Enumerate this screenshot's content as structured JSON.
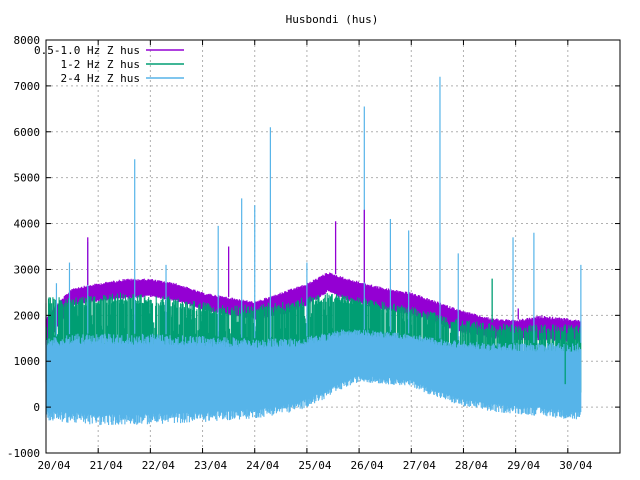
{
  "chart_data": {
    "type": "line",
    "title": "Husbondi (hus)",
    "xlabel": "",
    "ylabel": "",
    "ylim": [
      -1000,
      8000
    ],
    "yticks": [
      -1000,
      0,
      1000,
      2000,
      3000,
      4000,
      5000,
      6000,
      7000,
      8000
    ],
    "x_domain": [
      "2020-04-20",
      "2020-05-01"
    ],
    "x_tick_labels": [
      "20/04",
      "21/04",
      "22/04",
      "23/04",
      "24/04",
      "25/04",
      "26/04",
      "27/04",
      "28/04",
      "29/04",
      "30/04"
    ],
    "grid": true,
    "legend_position": "top-left",
    "series": [
      {
        "name": "0.5-1.0 Hz Z hus",
        "color": "#9400d3",
        "envelope": [
          {
            "x": 0.0,
            "lo": 1300,
            "hi": 2000
          },
          {
            "x": 0.5,
            "lo": 2200,
            "hi": 2600
          },
          {
            "x": 1.0,
            "lo": 2300,
            "hi": 2700
          },
          {
            "x": 1.5,
            "lo": 2350,
            "hi": 2800
          },
          {
            "x": 2.0,
            "lo": 2400,
            "hi": 2800
          },
          {
            "x": 2.5,
            "lo": 2300,
            "hi": 2700
          },
          {
            "x": 3.0,
            "lo": 2100,
            "hi": 2500
          },
          {
            "x": 3.5,
            "lo": 2000,
            "hi": 2400
          },
          {
            "x": 4.0,
            "lo": 1900,
            "hi": 2300
          },
          {
            "x": 4.5,
            "lo": 2000,
            "hi": 2500
          },
          {
            "x": 5.0,
            "lo": 2200,
            "hi": 2700
          },
          {
            "x": 5.4,
            "lo": 2500,
            "hi": 2950
          },
          {
            "x": 5.8,
            "lo": 2300,
            "hi": 2800
          },
          {
            "x": 6.5,
            "lo": 2100,
            "hi": 2600
          },
          {
            "x": 7.0,
            "lo": 2000,
            "hi": 2500
          },
          {
            "x": 7.5,
            "lo": 1800,
            "hi": 2300
          },
          {
            "x": 8.0,
            "lo": 1600,
            "hi": 2100
          },
          {
            "x": 8.5,
            "lo": 1500,
            "hi": 1950
          },
          {
            "x": 9.0,
            "lo": 1450,
            "hi": 1900
          },
          {
            "x": 9.5,
            "lo": 1450,
            "hi": 2000
          },
          {
            "x": 10.25,
            "lo": 1400,
            "hi": 1900
          }
        ]
      },
      {
        "name": "1-2 Hz Z hus",
        "color": "#009e73",
        "envelope": [
          {
            "x": 0.0,
            "lo": 300,
            "hi": 2400
          },
          {
            "x": 0.5,
            "lo": 400,
            "hi": 2400
          },
          {
            "x": 1.5,
            "lo": 450,
            "hi": 2500
          },
          {
            "x": 2.5,
            "lo": 400,
            "hi": 2400
          },
          {
            "x": 3.5,
            "lo": 300,
            "hi": 2200
          },
          {
            "x": 4.5,
            "lo": 400,
            "hi": 2300
          },
          {
            "x": 5.4,
            "lo": 800,
            "hi": 2500
          },
          {
            "x": 6.0,
            "lo": 900,
            "hi": 2400
          },
          {
            "x": 7.0,
            "lo": 700,
            "hi": 2200
          },
          {
            "x": 8.0,
            "lo": 300,
            "hi": 1900
          },
          {
            "x": 9.0,
            "lo": 200,
            "hi": 1800
          },
          {
            "x": 10.25,
            "lo": 200,
            "hi": 1800
          }
        ]
      },
      {
        "name": "2-4 Hz Z hus",
        "color": "#56b4e9",
        "envelope": [
          {
            "x": 0.0,
            "lo": -300,
            "hi": 1500
          },
          {
            "x": 0.5,
            "lo": -350,
            "hi": 1600
          },
          {
            "x": 1.0,
            "lo": -400,
            "hi": 1600
          },
          {
            "x": 2.0,
            "lo": -380,
            "hi": 1600
          },
          {
            "x": 3.0,
            "lo": -330,
            "hi": 1550
          },
          {
            "x": 4.0,
            "lo": -250,
            "hi": 1500
          },
          {
            "x": 4.8,
            "lo": -100,
            "hi": 1500
          },
          {
            "x": 5.3,
            "lo": 150,
            "hi": 1600
          },
          {
            "x": 5.7,
            "lo": 400,
            "hi": 1700
          },
          {
            "x": 6.0,
            "lo": 550,
            "hi": 1700
          },
          {
            "x": 6.5,
            "lo": 500,
            "hi": 1650
          },
          {
            "x": 7.0,
            "lo": 450,
            "hi": 1600
          },
          {
            "x": 7.5,
            "lo": 200,
            "hi": 1500
          },
          {
            "x": 8.0,
            "lo": 0,
            "hi": 1450
          },
          {
            "x": 8.5,
            "lo": -100,
            "hi": 1400
          },
          {
            "x": 9.0,
            "lo": -150,
            "hi": 1400
          },
          {
            "x": 9.5,
            "lo": -200,
            "hi": 1400
          },
          {
            "x": 10.25,
            "lo": -300,
            "hi": 1400
          }
        ],
        "spikes": [
          {
            "x": 0.2,
            "y": 2700
          },
          {
            "x": 0.45,
            "y": 3150
          },
          {
            "x": 0.8,
            "y": 3600
          },
          {
            "x": 1.7,
            "y": 5400
          },
          {
            "x": 2.3,
            "y": 3100
          },
          {
            "x": 3.3,
            "y": 3950
          },
          {
            "x": 3.75,
            "y": 4550
          },
          {
            "x": 4.0,
            "y": 4400
          },
          {
            "x": 4.3,
            "y": 6100
          },
          {
            "x": 5.0,
            "y": 3150
          },
          {
            "x": 6.1,
            "y": 6550
          },
          {
            "x": 6.6,
            "y": 4100
          },
          {
            "x": 6.95,
            "y": 3850
          },
          {
            "x": 7.55,
            "y": 7200
          },
          {
            "x": 7.9,
            "y": 3350
          },
          {
            "x": 8.95,
            "y": 3700
          },
          {
            "x": 9.35,
            "y": 3800
          },
          {
            "x": 10.25,
            "y": 3100
          }
        ]
      }
    ],
    "annotations": [
      {
        "x": 0.8,
        "y": 3700,
        "series": 0
      },
      {
        "x": 3.5,
        "y": 3500,
        "series": 0
      },
      {
        "x": 5.55,
        "y": 4050,
        "series": 0
      },
      {
        "x": 6.1,
        "y": 4300,
        "series": 0
      },
      {
        "x": 9.05,
        "y": 2150,
        "series": 0
      },
      {
        "x": 8.55,
        "y": 2800,
        "series": 1
      },
      {
        "x": 9.95,
        "y": 500,
        "series": 1
      }
    ]
  }
}
